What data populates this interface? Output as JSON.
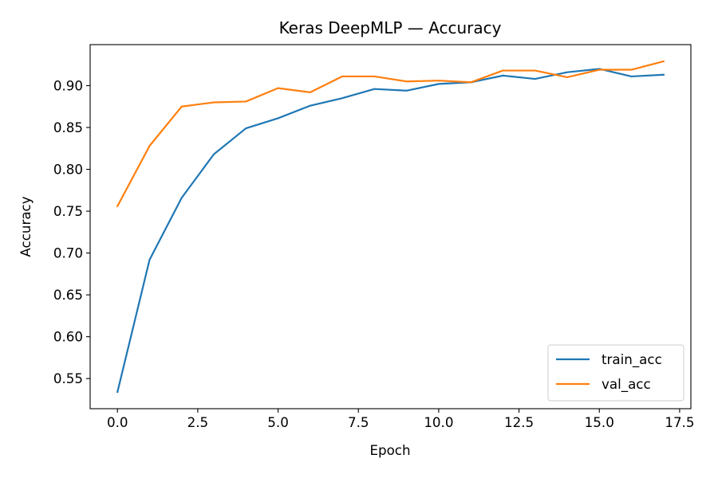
{
  "chart_data": {
    "type": "line",
    "title": "Keras DeepMLP — Accuracy",
    "xlabel": "Epoch",
    "ylabel": "Accuracy",
    "x": [
      0,
      1,
      2,
      3,
      4,
      5,
      6,
      7,
      8,
      9,
      10,
      11,
      12,
      13,
      14,
      15,
      16,
      17
    ],
    "series": [
      {
        "name": "train_acc",
        "color": "#1f77b4",
        "values": [
          0.534,
          0.692,
          0.766,
          0.818,
          0.849,
          0.861,
          0.876,
          0.885,
          0.896,
          0.894,
          0.902,
          0.904,
          0.912,
          0.908,
          0.916,
          0.92,
          0.911,
          0.913
        ]
      },
      {
        "name": "val_acc",
        "color": "#ff7f0e",
        "values": [
          0.756,
          0.828,
          0.875,
          0.88,
          0.881,
          0.897,
          0.892,
          0.911,
          0.911,
          0.905,
          0.906,
          0.904,
          0.918,
          0.918,
          0.91,
          0.919,
          0.919,
          0.929
        ]
      }
    ],
    "xlim": [
      -0.85,
      17.85
    ],
    "ylim": [
      0.514,
      0.949
    ],
    "xticks": [
      0.0,
      2.5,
      5.0,
      7.5,
      10.0,
      12.5,
      15.0,
      17.5
    ],
    "xtick_labels": [
      "0.0",
      "2.5",
      "5.0",
      "7.5",
      "10.0",
      "12.5",
      "15.0",
      "17.5"
    ],
    "yticks": [
      0.55,
      0.6,
      0.65,
      0.7,
      0.75,
      0.8,
      0.85,
      0.9
    ],
    "ytick_labels": [
      "0.55",
      "0.60",
      "0.65",
      "0.70",
      "0.75",
      "0.80",
      "0.85",
      "0.90"
    ],
    "grid": false,
    "legend_position": "lower-right"
  }
}
